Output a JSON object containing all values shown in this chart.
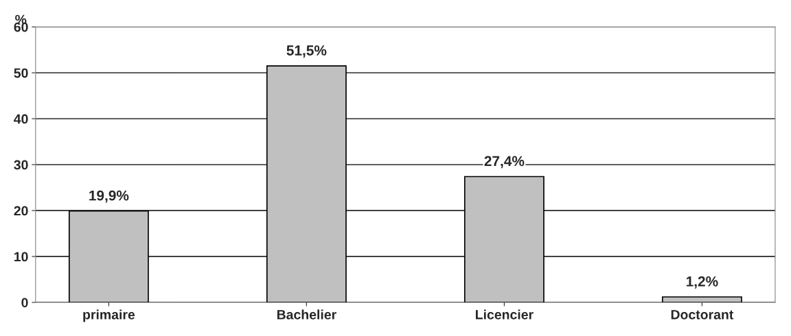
{
  "chart_data": {
    "type": "bar",
    "ylabel": "%",
    "categories": [
      "primaire",
      "Bachelier",
      "Licencier",
      "Doctorant"
    ],
    "values": [
      19.9,
      51.5,
      27.4,
      1.2
    ],
    "value_labels": [
      "19,9%",
      "51,5%",
      "27,4%",
      "1,2%"
    ],
    "color": "#c0c0c0",
    "ylim": [
      0,
      60
    ],
    "yticks": [
      0,
      10,
      20,
      30,
      40,
      50,
      60
    ],
    "grid": "y"
  }
}
